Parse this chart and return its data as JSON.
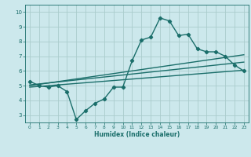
{
  "bg_color": "#cce8ec",
  "grid_color": "#aacccc",
  "line_color": "#1a6e6a",
  "xlabel": "Humidex (Indice chaleur)",
  "xlim": [
    -0.5,
    23.5
  ],
  "ylim": [
    2.5,
    10.5
  ],
  "xticks": [
    0,
    1,
    2,
    3,
    4,
    5,
    6,
    7,
    8,
    9,
    10,
    11,
    12,
    13,
    14,
    15,
    16,
    17,
    18,
    19,
    20,
    21,
    22,
    23
  ],
  "yticks": [
    3,
    4,
    5,
    6,
    7,
    8,
    9,
    10
  ],
  "lines": [
    {
      "x": [
        0,
        1,
        2,
        3,
        4,
        5,
        6,
        7,
        8,
        9,
        10,
        11,
        12,
        13,
        14,
        15,
        16,
        17,
        18,
        19,
        20,
        21,
        22,
        23
      ],
      "y": [
        5.3,
        5.0,
        4.9,
        5.0,
        4.6,
        2.7,
        3.3,
        3.8,
        4.1,
        4.9,
        4.9,
        6.7,
        8.1,
        8.3,
        9.6,
        9.4,
        8.4,
        8.5,
        7.5,
        7.3,
        7.3,
        7.0,
        6.4,
        6.0
      ],
      "marker": "D",
      "markersize": 2.2,
      "linewidth": 1.0
    },
    {
      "x": [
        0,
        23
      ],
      "y": [
        5.05,
        6.6
      ],
      "marker": null,
      "linewidth": 1.0
    },
    {
      "x": [
        0,
        23
      ],
      "y": [
        5.0,
        7.1
      ],
      "marker": null,
      "linewidth": 1.0
    },
    {
      "x": [
        0,
        23
      ],
      "y": [
        4.9,
        6.05
      ],
      "marker": null,
      "linewidth": 1.0
    }
  ]
}
